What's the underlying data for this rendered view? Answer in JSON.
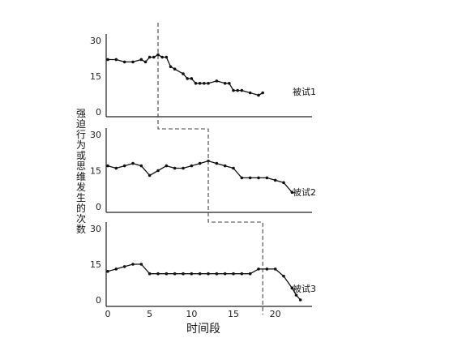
{
  "chart_data": {
    "type": "line",
    "ylabel": "强迫行为或思维发生的次数",
    "xlabel": "时间段",
    "xlim": [
      0,
      24
    ],
    "ylim": [
      0,
      30
    ],
    "x_ticks": [
      "0",
      "5",
      "10",
      "15",
      "20"
    ],
    "y_ticks": [
      "0",
      "15",
      "30"
    ],
    "panels": [
      {
        "series_label": "被试1",
        "baseline_end": 6,
        "x": [
          0,
          1,
          2,
          3,
          4,
          4.5,
          5,
          5.5,
          6,
          6.5,
          7,
          7.5,
          8,
          9,
          9.5,
          10,
          10.5,
          11,
          11.5,
          12,
          13,
          14,
          14.5,
          15,
          15.5,
          16,
          17,
          18,
          18.5
        ],
        "y": [
          22,
          22,
          21,
          21,
          22,
          21,
          23,
          23,
          24,
          23,
          23,
          19,
          18,
          16,
          14,
          14,
          12,
          12,
          12,
          12,
          13,
          12,
          12,
          9,
          9,
          9,
          8,
          7,
          8
        ]
      },
      {
        "series_label": "被试2",
        "baseline_end": 12,
        "x": [
          0,
          1,
          2,
          3,
          4,
          5,
          6,
          7,
          8,
          9,
          10,
          11,
          12,
          13,
          14,
          15,
          16,
          17,
          18,
          19,
          20,
          21,
          22
        ],
        "y": [
          17,
          16,
          17,
          18,
          17,
          13,
          15,
          17,
          16,
          16,
          17,
          18,
          19,
          18,
          17,
          16,
          12,
          12,
          12,
          12,
          11,
          10,
          6
        ]
      },
      {
        "series_label": "被试3",
        "baseline_end": 18.5,
        "x": [
          0,
          1,
          2,
          3,
          4,
          5,
          6,
          7,
          8,
          9,
          10,
          11,
          12,
          13,
          14,
          15,
          16,
          17,
          18,
          19,
          20,
          21,
          22,
          22.5,
          23
        ],
        "y": [
          12,
          13,
          14,
          15,
          15,
          11,
          11,
          11,
          11,
          11,
          11,
          11,
          11,
          11,
          11,
          11,
          11,
          11,
          13,
          13,
          13,
          10,
          5,
          2,
          0
        ]
      }
    ]
  }
}
